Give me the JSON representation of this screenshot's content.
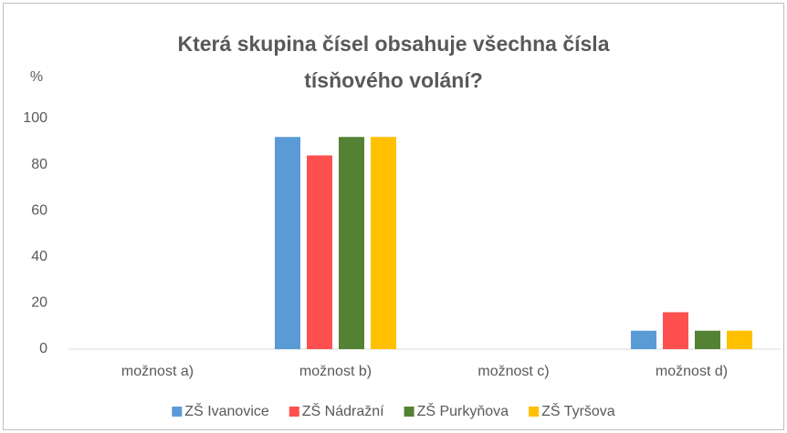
{
  "chart_data": {
    "type": "bar",
    "title": "Která skupina čísel obsahuje všechna čísla tísňového volání?",
    "y_label": "%",
    "categories": [
      "možnost a)",
      "možnost b)",
      "možnost c)",
      "možnost d)"
    ],
    "series": [
      {
        "name": "ZŠ Ivanovice",
        "color": "#5b9bd5",
        "values": [
          0,
          92,
          0,
          8
        ]
      },
      {
        "name": "ZŠ Nádražní",
        "color": "#ff5050",
        "values": [
          0,
          84,
          0,
          16
        ]
      },
      {
        "name": "ZŠ Purkyňova",
        "color": "#548235",
        "values": [
          0,
          92,
          0,
          8
        ]
      },
      {
        "name": "ZŠ Tyršova",
        "color": "#ffc000",
        "values": [
          0,
          92,
          0,
          8
        ]
      }
    ],
    "ylim": [
      0,
      100
    ],
    "yticks": [
      0,
      20,
      40,
      60,
      80,
      100
    ],
    "grid": true,
    "legend": "bottom"
  }
}
